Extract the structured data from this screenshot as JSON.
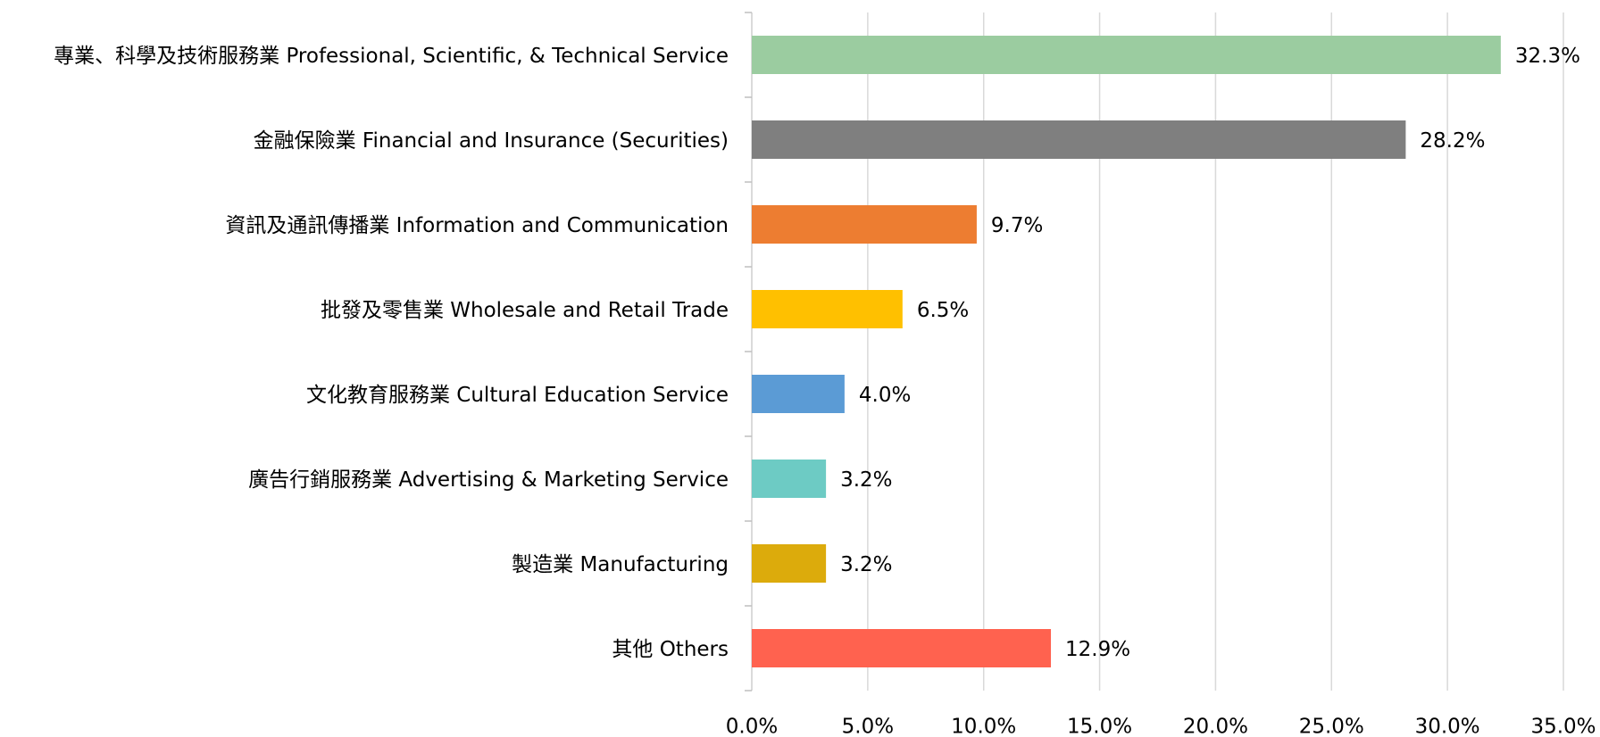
{
  "chart_data": {
    "type": "bar",
    "orientation": "horizontal",
    "categories": [
      "專業、科學及技術服務業 Professional, Scientific, & Technical Service",
      "金融保險業 Financial and Insurance (Securities)",
      "資訊及通訊傳播業 Information and Communication",
      "批發及零售業 Wholesale and Retail Trade",
      "文化教育服務業 Cultural Education Service",
      "廣告行銷服務業 Advertising & Marketing Service",
      "製造業 Manufacturing",
      "其他 Others"
    ],
    "values": [
      32.3,
      28.2,
      9.7,
      6.5,
      4.0,
      3.2,
      3.2,
      12.9
    ],
    "value_labels": [
      "32.3%",
      "28.2%",
      "9.7%",
      "6.5%",
      "4.0%",
      "3.2%",
      "3.2%",
      "12.9%"
    ],
    "colors": [
      "#9bcca0",
      "#7f7f7f",
      "#ed7d31",
      "#ffc000",
      "#5b9bd5",
      "#6dcbc4",
      "#dcab0c",
      "#ff624f"
    ],
    "xlim": [
      0,
      35
    ],
    "xticks": [
      {
        "value": 0,
        "label": "0.0%"
      },
      {
        "value": 5,
        "label": "5.0%"
      },
      {
        "value": 10,
        "label": "10.0%"
      },
      {
        "value": 15,
        "label": "15.0%"
      },
      {
        "value": 20,
        "label": "20.0%"
      },
      {
        "value": 25,
        "label": "25.0%"
      },
      {
        "value": 30,
        "label": "30.0%"
      },
      {
        "value": 35,
        "label": "35.0%"
      }
    ],
    "grid": true
  }
}
